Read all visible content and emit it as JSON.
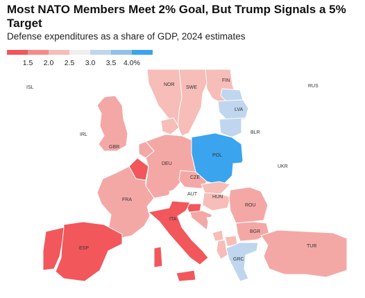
{
  "header": {
    "title": "Most NATO Members Meet 2% Goal, But Trump Signals a 5% Target",
    "subtitle": "Defense expenditures as a share of GDP, 2024 estimates"
  },
  "legend": {
    "colors": [
      "#f1575b",
      "#f48b8a",
      "#f7bdb8",
      "#efefef",
      "#bfd6ee",
      "#8fc0ec",
      "#3aa4ee"
    ],
    "tick_labels": [
      "1.5",
      "2.0",
      "2.5",
      "3.0",
      "3.5",
      "4.0%"
    ]
  },
  "map": {
    "colors": {
      "no_data": "#ffffff",
      "non_nato": "#ffffff",
      "border": "#c9c9c9"
    },
    "countries": [
      {
        "code": "ISL",
        "label": "ISL",
        "color": "#ffffff"
      },
      {
        "code": "IRL",
        "label": "IRL",
        "color": "#ffffff"
      },
      {
        "code": "GBR",
        "label": "GBR",
        "color": "#f4a8a6"
      },
      {
        "code": "NOR",
        "label": "NOR",
        "color": "#f7bdb8"
      },
      {
        "code": "SWE",
        "label": "SWE",
        "color": "#f7bdb8"
      },
      {
        "code": "FIN",
        "label": "FIN",
        "color": "#f7bdb8"
      },
      {
        "code": "RUS",
        "label": "RUS",
        "color": "#ffffff"
      },
      {
        "code": "LVA",
        "label": "LVA",
        "color": "#bfd6ee"
      },
      {
        "code": "BLR",
        "label": "BLR",
        "color": "#ffffff"
      },
      {
        "code": "POL",
        "label": "POL",
        "color": "#3aa4ee"
      },
      {
        "code": "UKR",
        "label": "UKR",
        "color": "#ffffff"
      },
      {
        "code": "DEU",
        "label": "DEU",
        "color": "#f4a8a6"
      },
      {
        "code": "CZE",
        "label": "CZE",
        "color": "#f4a8a6"
      },
      {
        "code": "AUT",
        "label": "AUT",
        "color": "#ffffff"
      },
      {
        "code": "HUN",
        "label": "HUN",
        "color": "#f7bdb8"
      },
      {
        "code": "ROU",
        "label": "ROU",
        "color": "#f4a8a6"
      },
      {
        "code": "BGR",
        "label": "BGR",
        "color": "#f4a8a6"
      },
      {
        "code": "FRA",
        "label": "FRA",
        "color": "#f4a8a6"
      },
      {
        "code": "ITA",
        "label": "ITA",
        "color": "#f1575b"
      },
      {
        "code": "ESP",
        "label": "ESP",
        "color": "#f1575b"
      },
      {
        "code": "GRC",
        "label": "GRC",
        "color": "#bfd6ee"
      },
      {
        "code": "TUR",
        "label": "TUR",
        "color": "#f4a8a6"
      },
      {
        "code": "BEL",
        "label": "",
        "color": "#f1575b"
      },
      {
        "code": "PRT",
        "label": "",
        "color": "#f1575b"
      },
      {
        "code": "NLD",
        "label": "",
        "color": "#f4a8a6"
      },
      {
        "code": "DNK",
        "label": "",
        "color": "#f7bdb8"
      },
      {
        "code": "EST",
        "label": "",
        "color": "#bfd6ee"
      },
      {
        "code": "LTU",
        "label": "",
        "color": "#bfd6ee"
      },
      {
        "code": "SVK",
        "label": "",
        "color": "#f7bdb8"
      },
      {
        "code": "SVN",
        "label": "",
        "color": "#f1575b"
      },
      {
        "code": "HRV",
        "label": "",
        "color": "#f4a8a6"
      },
      {
        "code": "BIH",
        "label": "",
        "color": "#ffffff"
      },
      {
        "code": "SRB",
        "label": "",
        "color": "#ffffff"
      },
      {
        "code": "MNE",
        "label": "",
        "color": "#f7bdb8"
      },
      {
        "code": "ALB",
        "label": "",
        "color": "#f7bdb8"
      },
      {
        "code": "MKD",
        "label": "",
        "color": "#f7bdb8"
      },
      {
        "code": "MDA",
        "label": "",
        "color": "#ffffff"
      },
      {
        "code": "CHE",
        "label": "",
        "color": "#ffffff"
      }
    ]
  }
}
